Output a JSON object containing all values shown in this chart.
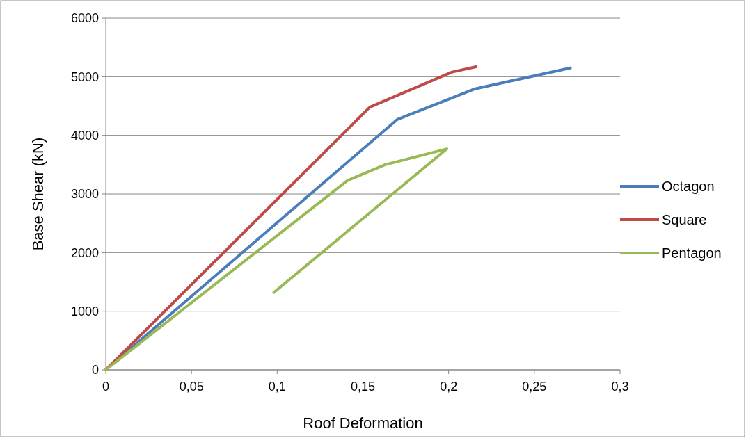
{
  "chart_data": {
    "type": "line",
    "xlabel": "Roof Deformation",
    "ylabel": "Base Shear (kN)",
    "xlim": [
      0,
      0.3
    ],
    "ylim": [
      0,
      6000
    ],
    "xticks": [
      0,
      {
        "value": 0.05,
        "label": "0,05"
      },
      {
        "value": 0.1,
        "label": "0,1"
      },
      {
        "value": 0.15,
        "label": "0,15"
      },
      {
        "value": 0.2,
        "label": "0,2"
      },
      {
        "value": 0.25,
        "label": "0,25"
      },
      {
        "value": 0.3,
        "label": "0,3"
      }
    ],
    "yticks": [
      0,
      1000,
      2000,
      3000,
      4000,
      5000,
      6000
    ],
    "grid": "y",
    "legend": "right",
    "marker": "none",
    "line_style": "solid",
    "series": [
      {
        "name": "Octagon",
        "color": "#4a7ebb",
        "x": [
          0,
          0.17,
          0.215,
          0.271
        ],
        "values": [
          0,
          4270,
          4790,
          5150
        ]
      },
      {
        "name": "Square",
        "color": "#be4b48",
        "x": [
          0,
          0.154,
          0.202,
          0.216
        ],
        "values": [
          0,
          4480,
          5080,
          5170
        ]
      },
      {
        "name": "Pentagon",
        "color": "#98b954",
        "x": [
          0,
          0.141,
          0.163,
          0.199,
          0.098
        ],
        "values": [
          0,
          3230,
          3500,
          3770,
          1320
        ]
      }
    ]
  }
}
